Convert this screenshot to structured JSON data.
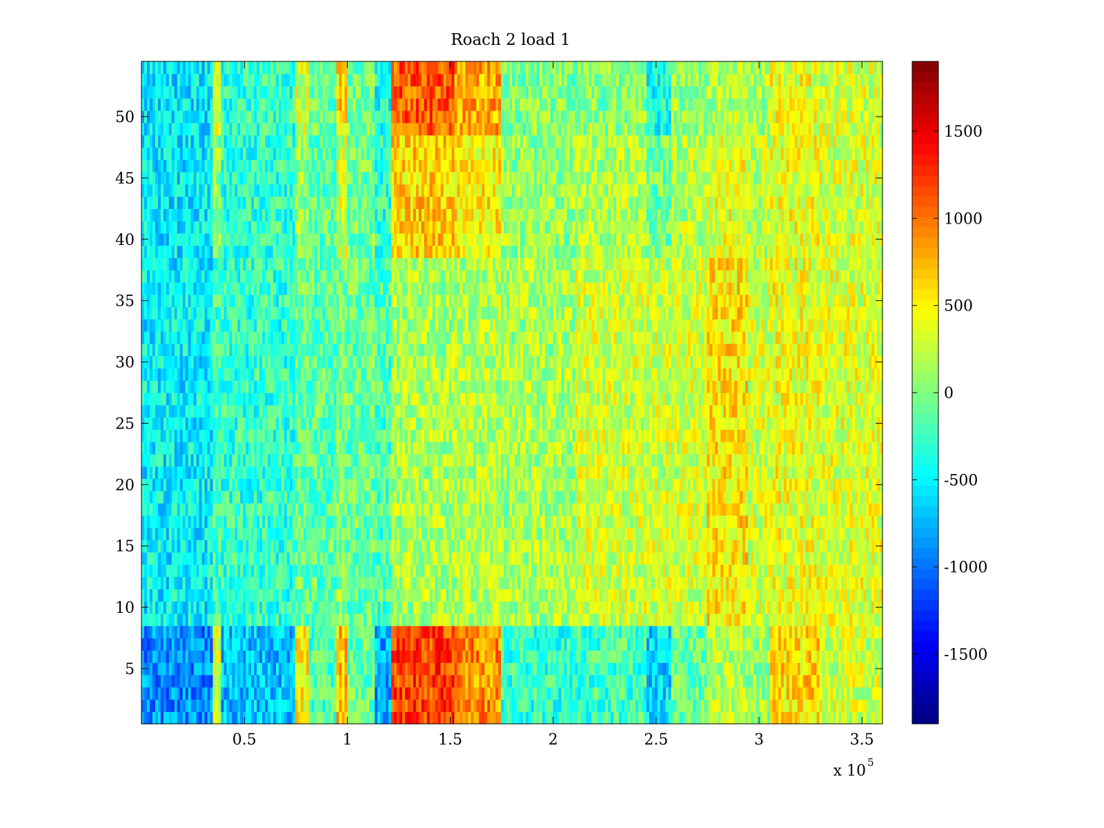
{
  "chart_data": {
    "type": "heatmap",
    "title": "Roach 2 load 1",
    "xlabel": "",
    "ylabel": "",
    "x_exponent_label": {
      "base": "x 10",
      "exponent": "5"
    },
    "xlim": [
      0,
      360000
    ],
    "ylim": [
      0.5,
      54.5
    ],
    "x_ticks": [
      {
        "value": 50000,
        "label": "0.5"
      },
      {
        "value": 100000,
        "label": "1"
      },
      {
        "value": 150000,
        "label": "1.5"
      },
      {
        "value": 200000,
        "label": "2"
      },
      {
        "value": 250000,
        "label": "2.5"
      },
      {
        "value": 300000,
        "label": "3"
      },
      {
        "value": 350000,
        "label": "3.5"
      }
    ],
    "y_ticks": [
      {
        "value": 5,
        "label": "5"
      },
      {
        "value": 10,
        "label": "10"
      },
      {
        "value": 15,
        "label": "15"
      },
      {
        "value": 20,
        "label": "20"
      },
      {
        "value": 25,
        "label": "25"
      },
      {
        "value": 30,
        "label": "30"
      },
      {
        "value": 35,
        "label": "35"
      },
      {
        "value": 40,
        "label": "40"
      },
      {
        "value": 45,
        "label": "45"
      },
      {
        "value": 50,
        "label": "50"
      }
    ],
    "colorbar": {
      "colormap": "jet",
      "clim": [
        -1900,
        1900
      ],
      "ticks": [
        {
          "value": 1500,
          "label": "1500"
        },
        {
          "value": 1000,
          "label": "1000"
        },
        {
          "value": 500,
          "label": "500"
        },
        {
          "value": 0,
          "label": "0"
        },
        {
          "value": -500,
          "label": "-500"
        },
        {
          "value": -1000,
          "label": "-1000"
        },
        {
          "value": -1500,
          "label": "-1500"
        }
      ]
    },
    "rows": 54,
    "x_bands": [
      {
        "x": [
          0,
          35000
        ],
        "low_rows": -900,
        "mid_rows": -500,
        "high_rows": -550
      },
      {
        "x": [
          35000,
          38000
        ],
        "low_rows": 300,
        "mid_rows": -200,
        "high_rows": 300
      },
      {
        "x": [
          38000,
          75000
        ],
        "low_rows": -700,
        "mid_rows": -300,
        "high_rows": -300
      },
      {
        "x": [
          75000,
          82000
        ],
        "low_rows": 500,
        "mid_rows": -100,
        "high_rows": 300
      },
      {
        "x": [
          82000,
          95000
        ],
        "low_rows": -200,
        "mid_rows": -150,
        "high_rows": -100
      },
      {
        "x": [
          95000,
          100000
        ],
        "low_rows": 700,
        "mid_rows": 0,
        "high_rows": 600
      },
      {
        "x": [
          100000,
          113000
        ],
        "low_rows": -100,
        "mid_rows": -100,
        "high_rows": 0
      },
      {
        "x": [
          113000,
          122000
        ],
        "low_rows": -800,
        "mid_rows": -200,
        "high_rows": -400
      },
      {
        "x": [
          122000,
          152000
        ],
        "low_rows": 1200,
        "mid_rows": 150,
        "high_rows": 1100
      },
      {
        "x": [
          152000,
          175000
        ],
        "low_rows": 900,
        "mid_rows": 200,
        "high_rows": 800
      },
      {
        "x": [
          175000,
          210000
        ],
        "low_rows": -300,
        "mid_rows": 150,
        "high_rows": 0
      },
      {
        "x": [
          210000,
          245000
        ],
        "low_rows": -250,
        "mid_rows": 300,
        "high_rows": 50
      },
      {
        "x": [
          245000,
          257000
        ],
        "low_rows": -600,
        "mid_rows": 300,
        "high_rows": -400
      },
      {
        "x": [
          257000,
          275000
        ],
        "low_rows": -100,
        "mid_rows": 300,
        "high_rows": 100
      },
      {
        "x": [
          275000,
          295000
        ],
        "low_rows": 200,
        "mid_rows": 550,
        "high_rows": 200
      },
      {
        "x": [
          295000,
          305000
        ],
        "low_rows": 100,
        "mid_rows": 300,
        "high_rows": 150
      },
      {
        "x": [
          305000,
          330000
        ],
        "low_rows": 600,
        "mid_rows": 400,
        "high_rows": 400
      },
      {
        "x": [
          330000,
          360000
        ],
        "low_rows": 300,
        "mid_rows": 350,
        "high_rows": 300
      }
    ]
  }
}
